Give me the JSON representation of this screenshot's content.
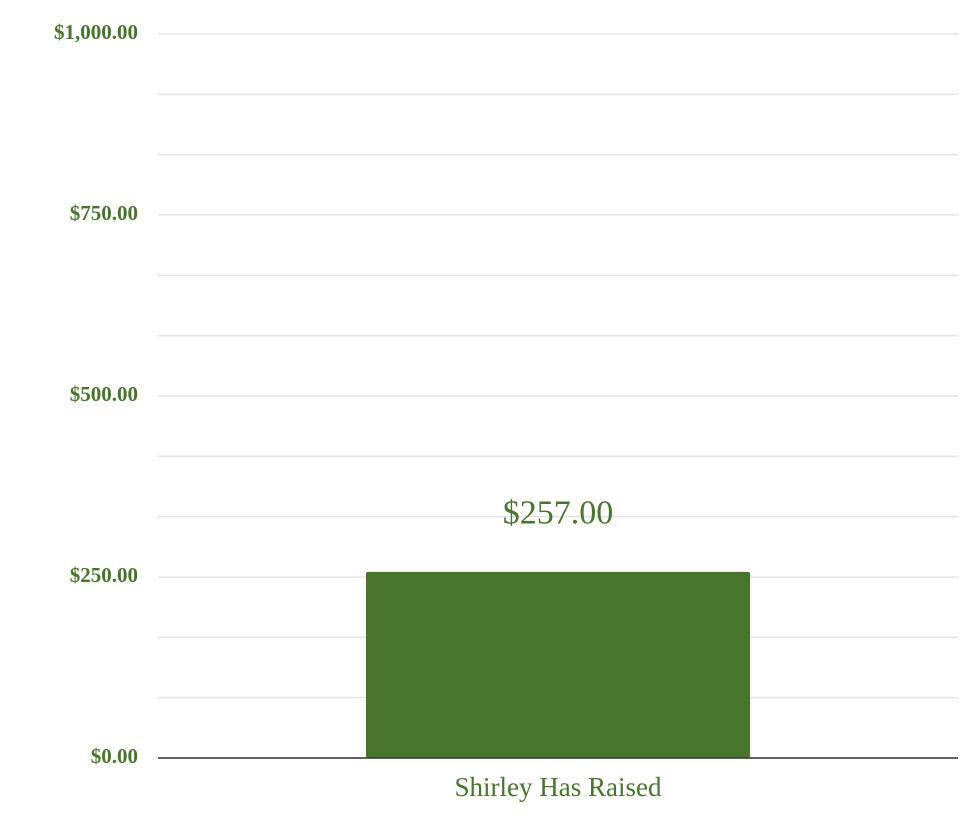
{
  "chart_data": {
    "type": "bar",
    "categories": [
      "Shirley Has Raised"
    ],
    "values": [
      257
    ],
    "value_labels": [
      "$257.00"
    ],
    "color": "#48752c",
    "ylim": [
      0,
      1000
    ],
    "yticks": [
      {
        "value": 0,
        "label": "$0.00"
      },
      {
        "value": 250,
        "label": "$250.00"
      },
      {
        "value": 500,
        "label": "$500.00"
      },
      {
        "value": 750,
        "label": "$750.00"
      },
      {
        "value": 1000,
        "label": "$1,000.00"
      }
    ],
    "grid": true
  }
}
